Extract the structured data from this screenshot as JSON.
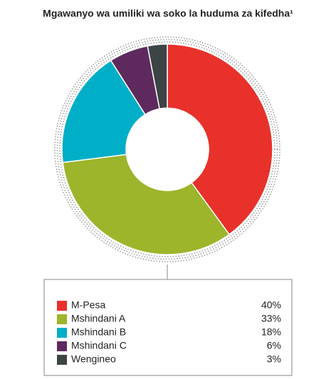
{
  "chart_data": {
    "type": "donut",
    "title": "Mgawanyo wa umiliki wa soko la huduma za kifedha¹",
    "categories": [
      "M-Pesa",
      "Mshindani A",
      "Mshindani B",
      "Mshindani C",
      "Wengineo"
    ],
    "values": [
      40,
      33,
      18,
      6,
      3
    ],
    "value_labels": [
      "40%",
      "33%",
      "18%",
      "6%",
      "3%"
    ],
    "colors": [
      "#e8312a",
      "#9cb52a",
      "#00aec7",
      "#5e2a5e",
      "#3c4446"
    ]
  }
}
